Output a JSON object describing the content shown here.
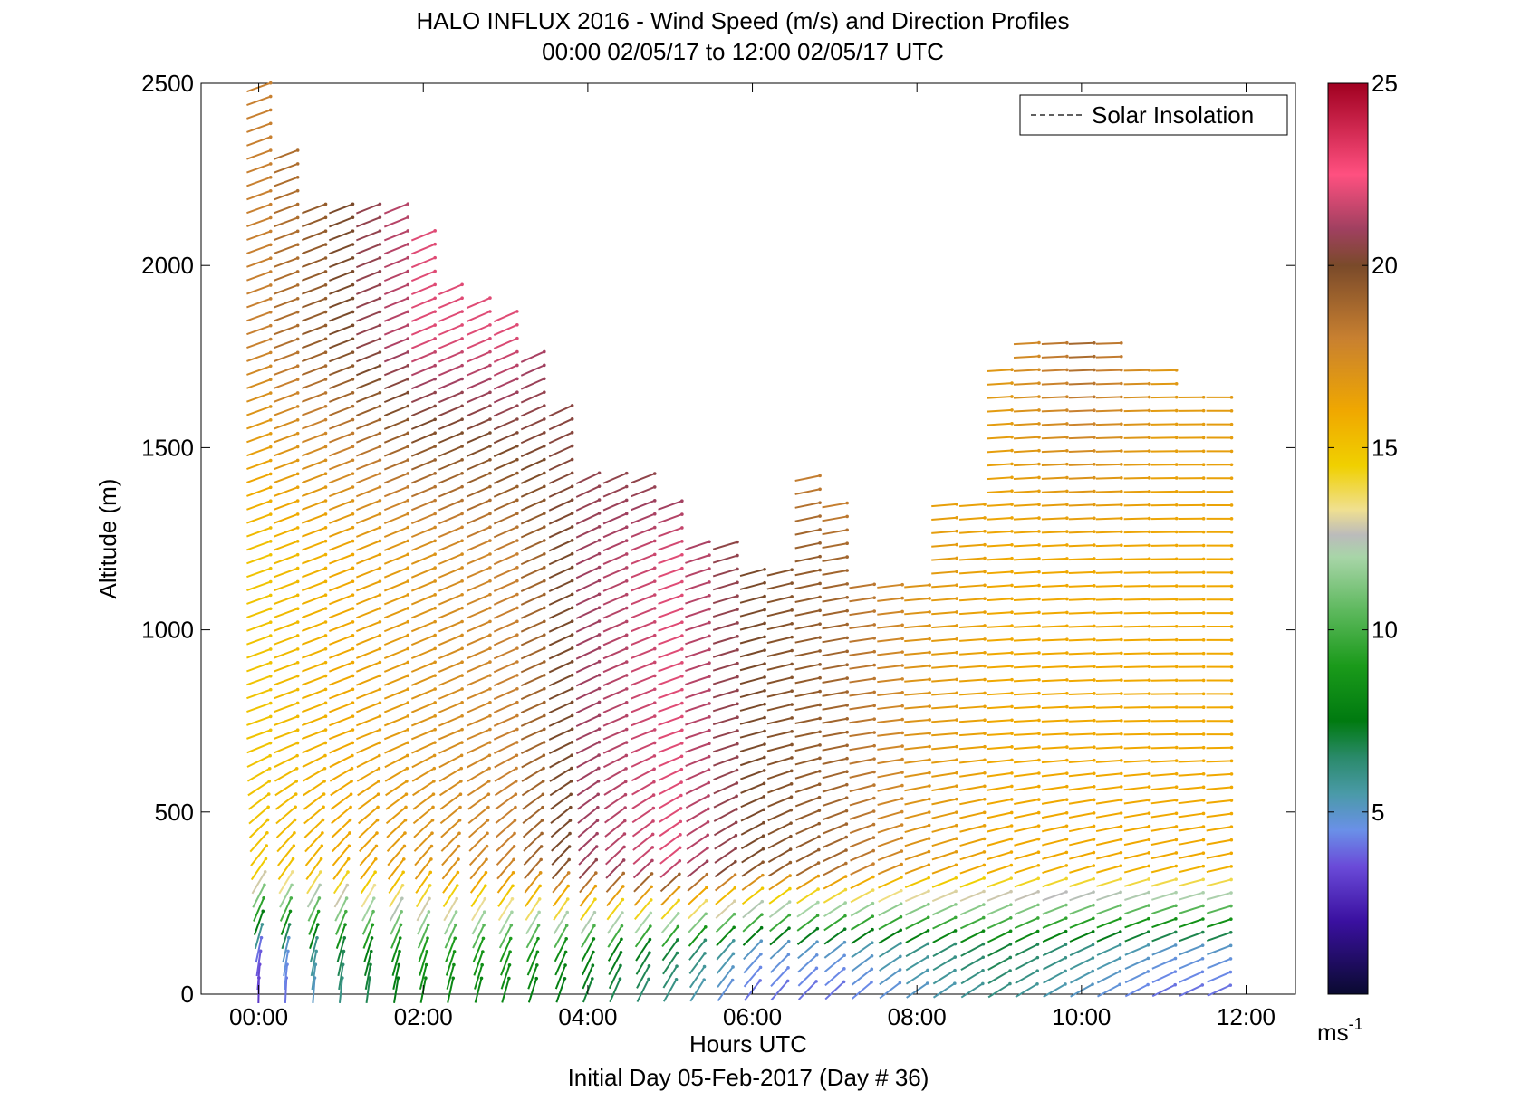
{
  "chart_data": {
    "type": "vector-field",
    "title": "HALO INFLUX 2016 - Wind Speed (m/s) and Direction Profiles",
    "subtitle": "00:00 02/05/17 to 12:00 02/05/17  UTC",
    "footer": "Initial Day 05-Feb-2017 (Day # 36)",
    "xlabel": "Hours UTC",
    "ylabel": "Altitude (m)",
    "xlim": [
      -0.7,
      12.6
    ],
    "ylim": [
      0,
      2500
    ],
    "x_ticks": [
      0,
      2,
      4,
      6,
      8,
      10,
      12
    ],
    "x_tick_labels": [
      "00:00",
      "02:00",
      "04:00",
      "06:00",
      "08:00",
      "10:00",
      "12:00"
    ],
    "y_ticks": [
      0,
      500,
      1000,
      1500,
      2000,
      2500
    ],
    "y_tick_labels": [
      "0",
      "500",
      "1000",
      "1500",
      "2000",
      "2500"
    ],
    "legend": {
      "label": "Solar Insolation",
      "position": "top-right"
    },
    "colorbar": {
      "unit_label": "ms",
      "unit_exponent": "-1",
      "range": [
        0,
        25
      ],
      "ticks": [
        5,
        10,
        15,
        20,
        25
      ],
      "tick_labels": [
        "5",
        "10",
        "15",
        "20",
        "25"
      ],
      "stops": [
        {
          "v": 0,
          "c": "#0a0a30"
        },
        {
          "v": 2,
          "c": "#3a10a0"
        },
        {
          "v": 3.5,
          "c": "#6a4ad8"
        },
        {
          "v": 4.5,
          "c": "#6a90e8"
        },
        {
          "v": 5.5,
          "c": "#4a9aa8"
        },
        {
          "v": 6.5,
          "c": "#2a8a6a"
        },
        {
          "v": 7.5,
          "c": "#007a10"
        },
        {
          "v": 9,
          "c": "#1a9a1a"
        },
        {
          "v": 10.5,
          "c": "#5cb85c"
        },
        {
          "v": 12,
          "c": "#a8d5a8"
        },
        {
          "v": 12.6,
          "c": "#bbbbbb"
        },
        {
          "v": 13.3,
          "c": "#f0e090"
        },
        {
          "v": 14.5,
          "c": "#f0d000"
        },
        {
          "v": 16,
          "c": "#f0a800"
        },
        {
          "v": 18,
          "c": "#c88030"
        },
        {
          "v": 20,
          "c": "#7a4a2a"
        },
        {
          "v": 21,
          "c": "#a04060"
        },
        {
          "v": 22.5,
          "c": "#ff5080"
        },
        {
          "v": 25,
          "c": "#a00020"
        }
      ]
    },
    "profile_times": [
      0.0,
      0.33,
      0.67,
      1.0,
      1.33,
      1.67,
      2.0,
      2.33,
      2.67,
      3.0,
      3.33,
      3.67,
      4.0,
      4.33,
      4.67,
      5.0,
      5.33,
      5.67,
      6.0,
      6.33,
      6.67,
      7.0,
      7.33,
      7.67,
      8.0,
      8.33,
      8.67,
      9.0,
      9.33,
      9.67,
      10.0,
      10.33,
      10.67,
      11.0,
      11.33,
      11.67
    ],
    "profile_tops": [
      2500,
      2330,
      2170,
      2170,
      2170,
      2170,
      2090,
      1950,
      1910,
      1870,
      1780,
      1620,
      1450,
      1450,
      1450,
      1370,
      1250,
      1250,
      1170,
      1170,
      1450,
      1370,
      1130,
      1130,
      1130,
      1370,
      1370,
      1740,
      1820,
      1820,
      1820,
      1820,
      1740,
      1740,
      1660,
      1660
    ],
    "altitude_step": 37,
    "speed_profiles": [
      {
        "t": 0.0,
        "low": 4,
        "mid": 15,
        "high": 18
      },
      {
        "t": 1.0,
        "low": 7,
        "mid": 16,
        "high": 20
      },
      {
        "t": 2.0,
        "low": 9,
        "mid": 17,
        "high": 22
      },
      {
        "t": 3.0,
        "low": 9,
        "mid": 18,
        "high": 22
      },
      {
        "t": 4.0,
        "low": 8,
        "mid": 21,
        "high": 20
      },
      {
        "t": 5.0,
        "low": 7,
        "mid": 22,
        "high": 18
      },
      {
        "t": 6.0,
        "low": 5,
        "mid": 20,
        "high": 18
      },
      {
        "t": 7.0,
        "low": 5,
        "mid": 19,
        "high": 15
      },
      {
        "t": 8.0,
        "low": 6,
        "mid": 17,
        "high": 15
      },
      {
        "t": 9.0,
        "low": 7,
        "mid": 16,
        "high": 17
      },
      {
        "t": 10.0,
        "low": 6,
        "mid": 16,
        "high": 19
      },
      {
        "t": 11.0,
        "low": 5,
        "mid": 16,
        "high": 17
      }
    ],
    "direction_profiles": [
      {
        "t": 0.0,
        "low_deg": 180,
        "high_deg": 250
      },
      {
        "t": 4.0,
        "low_deg": 200,
        "high_deg": 245
      },
      {
        "t": 8.0,
        "low_deg": 235,
        "high_deg": 265
      },
      {
        "t": 11.7,
        "low_deg": 245,
        "high_deg": 270
      }
    ]
  }
}
